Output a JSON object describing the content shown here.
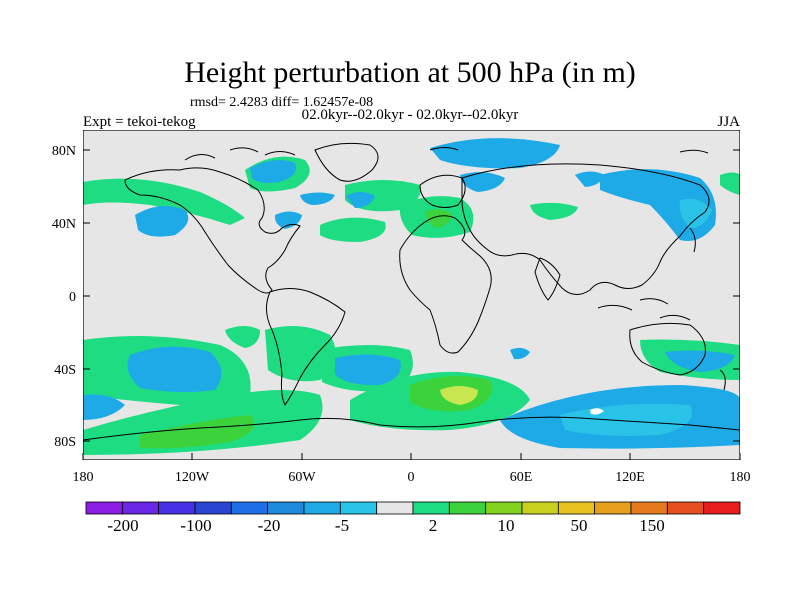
{
  "title": "Height perturbation at 500 hPa (in m)",
  "stats": "rmsd= 2.4283 diff= 1.62457e-08",
  "periods": "02.0kyr--02.0kyr - 02.0kyr--02.0kyr",
  "experiment": "Expt = tekoi-tekog",
  "season": "JJA",
  "lat_ticks": [
    "80N",
    "40N",
    "0",
    "40S",
    "80S"
  ],
  "lon_ticks": [
    "180",
    "120W",
    "60W",
    "0",
    "60E",
    "120E",
    "180"
  ],
  "colorbar": {
    "colors": [
      "#8c1ee6",
      "#6a28e6",
      "#4632e6",
      "#2846d2",
      "#1e6ee6",
      "#1e8cdc",
      "#1eaae6",
      "#28c3e6",
      "#e6e6e6",
      "#1edc82",
      "#3cd23c",
      "#82d21e",
      "#c8d21e",
      "#e6c31e",
      "#e6a01e",
      "#e6781e",
      "#e6501e",
      "#e61e1e"
    ],
    "labels": [
      "-200",
      "-100",
      "-20",
      "-5",
      "2",
      "10",
      "50",
      "150"
    ]
  },
  "palette": {
    "ocean_bg": "#e6e6e6",
    "light_blue": "#1eaae6",
    "cyan": "#28c3e6",
    "green": "#1edc82",
    "mid_green": "#3cd23c",
    "yellow_green": "#c8e650"
  }
}
